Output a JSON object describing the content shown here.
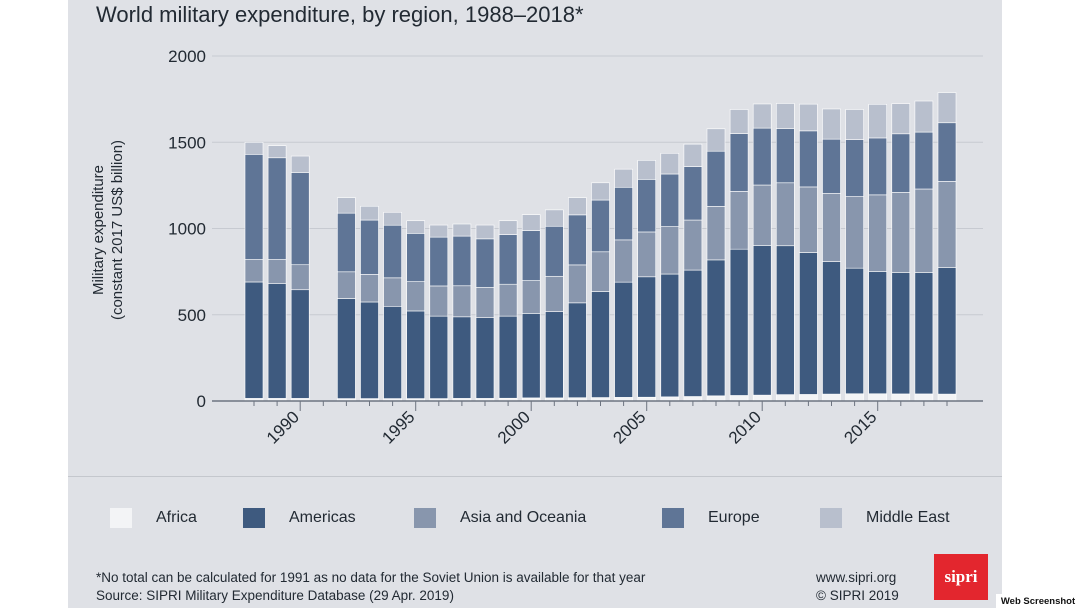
{
  "chart_data": {
    "type": "bar",
    "stacked": true,
    "title": "World military expenditure, by region, 1988–2018*",
    "ylabel_line1": "Military expenditure",
    "ylabel_line2": "(constant 2017 US$ billion)",
    "xlabel": "",
    "ylim": [
      0,
      2000
    ],
    "yticks": [
      "0",
      "500",
      "1000",
      "1500",
      "2000"
    ],
    "xtick_labels": [
      "1990",
      "1995",
      "2000",
      "2005",
      "2010",
      "2015"
    ],
    "categories": [
      1988,
      1989,
      1990,
      1991,
      1992,
      1993,
      1994,
      1995,
      1996,
      1997,
      1998,
      1999,
      2000,
      2001,
      2002,
      2003,
      2004,
      2005,
      2006,
      2007,
      2008,
      2009,
      2010,
      2011,
      2012,
      2013,
      2014,
      2015,
      2016,
      2017,
      2018
    ],
    "series": [
      {
        "name": "Africa",
        "color": "#f3f4f6",
        "values": [
          15,
          15,
          15,
          null,
          14,
          14,
          14,
          14,
          14,
          15,
          15,
          16,
          18,
          18,
          19,
          20,
          21,
          22,
          24,
          26,
          30,
          32,
          34,
          37,
          38,
          40,
          42,
          42,
          41,
          41,
          40
        ]
      },
      {
        "name": "Americas",
        "color": "#3e5a7f",
        "values": [
          675,
          665,
          630,
          null,
          580,
          560,
          535,
          508,
          478,
          473,
          468,
          476,
          490,
          500,
          550,
          615,
          668,
          698,
          712,
          733,
          788,
          848,
          868,
          863,
          823,
          768,
          728,
          708,
          703,
          703,
          733
        ]
      },
      {
        "name": "Asia and Oceania",
        "color": "#8896ad",
        "values": [
          130,
          140,
          145,
          null,
          155,
          160,
          165,
          170,
          175,
          180,
          175,
          185,
          190,
          205,
          220,
          230,
          245,
          260,
          275,
          290,
          310,
          335,
          350,
          365,
          380,
          395,
          415,
          445,
          465,
          485,
          500
        ]
      },
      {
        "name": "Europe",
        "color": "#5f7596",
        "values": [
          610,
          590,
          535,
          null,
          340,
          315,
          305,
          280,
          283,
          288,
          282,
          288,
          290,
          290,
          290,
          300,
          305,
          305,
          305,
          310,
          320,
          335,
          330,
          315,
          325,
          315,
          330,
          330,
          340,
          330,
          340
        ]
      },
      {
        "name": "Middle East",
        "color": "#b8bfcd",
        "values": [
          70,
          70,
          95,
          null,
          90,
          80,
          75,
          73,
          70,
          70,
          80,
          80,
          92,
          95,
          100,
          100,
          105,
          110,
          120,
          130,
          130,
          140,
          140,
          145,
          155,
          175,
          175,
          195,
          175,
          180,
          175
        ]
      }
    ]
  },
  "legend": [
    "Africa",
    "Americas",
    "Asia and Oceania",
    "Europe",
    "Middle East"
  ],
  "footnote": "*No total can be calculated for 1991 as no data for the Soviet Union is available for that year",
  "source": "Source: SIPRI Military Expenditure Database (29 Apr. 2019)",
  "site": "www.sipri.org",
  "copyright": "© SIPRI 2019",
  "logo_text": "sipri",
  "badge": "Web Screenshot"
}
